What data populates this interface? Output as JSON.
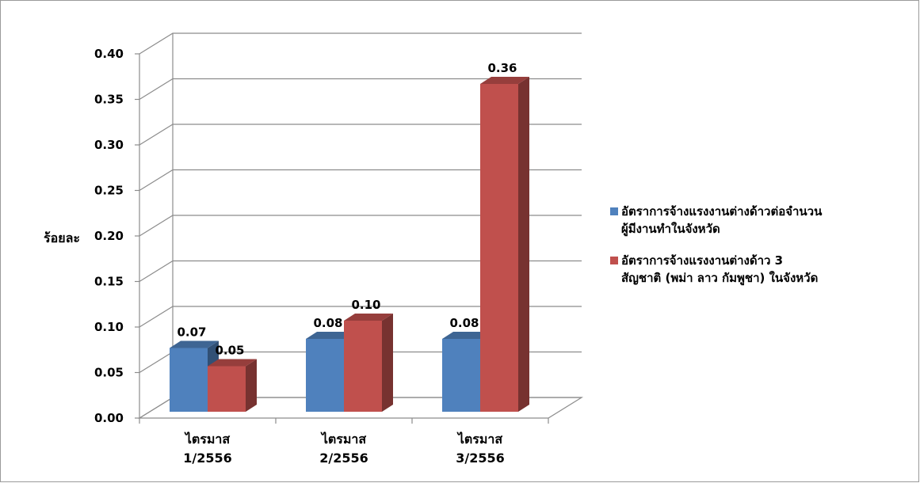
{
  "chart_data": {
    "type": "bar",
    "categories": [
      [
        "ไตรมาส",
        "1/2556"
      ],
      [
        "ไตรมาส",
        "2/2556"
      ],
      [
        "ไตรมาส",
        "3/2556"
      ]
    ],
    "series": [
      {
        "name": [
          "อัตราการจ้างแรงงานต่างด้าวต่อจำนวน",
          "ผู้มีงานทำในจังหวัด"
        ],
        "values": [
          0.07,
          0.08,
          0.08
        ],
        "labels": [
          "0.07",
          "0.08",
          "0.08"
        ],
        "color": "#4f81bd"
      },
      {
        "name": [
          "อัตราการจ้างแรงงานต่างด้าว 3",
          "สัญชาติ (พม่า ลาว กัมพูชา) ในจังหวัด"
        ],
        "values": [
          0.05,
          0.1,
          0.36
        ],
        "labels": [
          "0.05",
          "0.10",
          "0.36"
        ],
        "color": "#c0504d"
      }
    ],
    "ylabel": "ร้อยละ",
    "ylim": [
      0,
      0.4
    ],
    "yticks": [
      "0.00",
      "0.05",
      "0.10",
      "0.15",
      "0.20",
      "0.25",
      "0.30",
      "0.35",
      "0.40"
    ],
    "grid": true,
    "legend": "right"
  }
}
